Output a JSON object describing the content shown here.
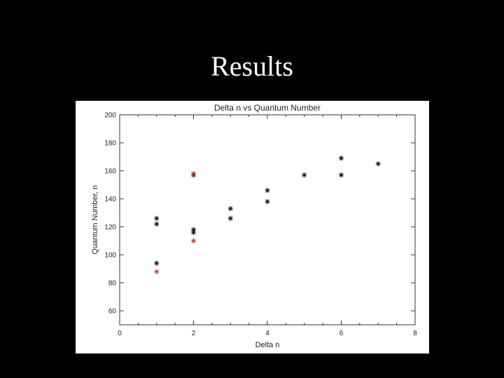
{
  "slide": {
    "title": "Results"
  },
  "chart_data": {
    "type": "scatter",
    "title": "Delta n vs Quantum Number",
    "xlabel": "Delta n",
    "ylabel": "Quantum Number, n",
    "xlim": [
      0,
      8
    ],
    "ylim": [
      50,
      200
    ],
    "xticks": [
      0,
      2,
      4,
      6,
      8
    ],
    "yticks": [
      60,
      80,
      100,
      120,
      140,
      160,
      180,
      200
    ],
    "grid": false,
    "marker": "asterisk",
    "series": [
      {
        "color": "#111111",
        "points": [
          [
            1,
            126
          ],
          [
            1,
            122
          ],
          [
            1,
            94
          ],
          [
            2,
            157
          ],
          [
            2,
            118
          ],
          [
            2,
            116
          ],
          [
            3,
            133
          ],
          [
            3,
            126
          ],
          [
            4,
            146
          ],
          [
            4,
            138
          ],
          [
            5,
            157
          ],
          [
            6,
            169
          ],
          [
            6,
            157
          ],
          [
            7,
            165
          ]
        ]
      },
      {
        "color": "#b5432a",
        "points": [
          [
            1,
            88
          ],
          [
            2,
            158
          ],
          [
            2,
            110
          ]
        ]
      }
    ]
  }
}
